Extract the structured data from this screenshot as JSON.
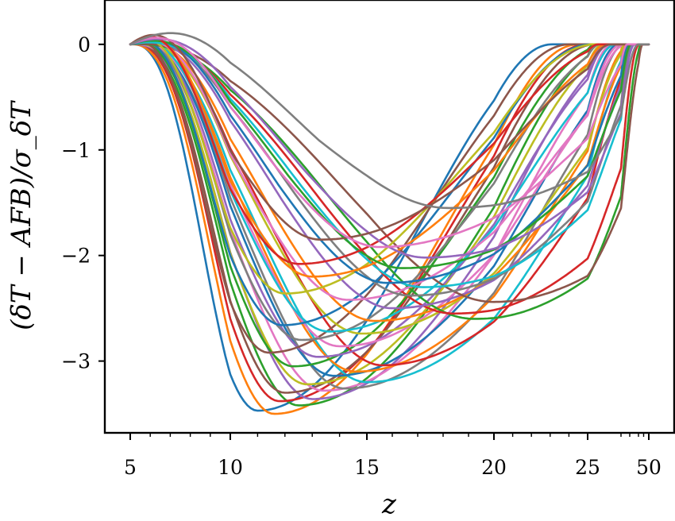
{
  "chart_data": {
    "type": "line",
    "title": "",
    "xlabel": "z",
    "ylabel": "(δT − AFB)/σ_δT",
    "x_scale": "nonlinear (compressed at high z)",
    "x_ticks": [
      5,
      10,
      15,
      20,
      25,
      50
    ],
    "x_tick_labels": [
      "5",
      "10",
      "15",
      "20",
      "25",
      "50"
    ],
    "x_minor_ticks": [
      6,
      7,
      8,
      9,
      11,
      12,
      13,
      14,
      16,
      17,
      18,
      19,
      21,
      22,
      23,
      24,
      30,
      35,
      40,
      45
    ],
    "y_ticks": [
      0,
      -1,
      -2,
      -3
    ],
    "y_tick_labels": [
      "0",
      "−1",
      "−2",
      "−3"
    ],
    "xlim": [
      4.2,
      50.5
    ],
    "ylim": [
      -3.68,
      0.42
    ],
    "grid": false,
    "legend": "none",
    "palette": [
      "#1f77b4",
      "#ff7f0e",
      "#2ca02c",
      "#d62728",
      "#9467bd",
      "#8c564b",
      "#e377c2",
      "#7f7f7f",
      "#bcbd22",
      "#17becf"
    ],
    "series_shape": "each curve starts at 0 at z=5, rises slightly above 0, dips to a single minimum, then returns to 0 by z=50",
    "series": [
      {
        "min_z": 11.0,
        "min_y": -3.47,
        "pos_bump": 0.02
      },
      {
        "min_z": 11.6,
        "min_y": -3.5,
        "pos_bump": 0.01
      },
      {
        "min_z": 12.5,
        "min_y": -3.42,
        "pos_bump": 0.03
      },
      {
        "min_z": 11.8,
        "min_y": -3.38,
        "pos_bump": 0.04
      },
      {
        "min_z": 13.0,
        "min_y": -3.36,
        "pos_bump": 0.02
      },
      {
        "min_z": 12.0,
        "min_y": -3.3,
        "pos_bump": 0.05
      },
      {
        "min_z": 13.4,
        "min_y": -3.28,
        "pos_bump": 0.03
      },
      {
        "min_z": 14.2,
        "min_y": -3.26,
        "pos_bump": 0.04
      },
      {
        "min_z": 12.8,
        "min_y": -3.22,
        "pos_bump": 0.06
      },
      {
        "min_z": 15.0,
        "min_y": -3.2,
        "pos_bump": 0.05
      },
      {
        "min_z": 13.8,
        "min_y": -3.14,
        "pos_bump": 0.07
      },
      {
        "min_z": 14.6,
        "min_y": -3.1,
        "pos_bump": 0.05
      },
      {
        "min_z": 12.3,
        "min_y": -3.05,
        "pos_bump": 0.08
      },
      {
        "min_z": 15.6,
        "min_y": -3.04,
        "pos_bump": 0.06
      },
      {
        "min_z": 13.2,
        "min_y": -2.96,
        "pos_bump": 0.09
      },
      {
        "min_z": 11.4,
        "min_y": -2.92,
        "pos_bump": 0.1
      },
      {
        "min_z": 14.0,
        "min_y": -2.86,
        "pos_bump": 0.07
      },
      {
        "min_z": 12.6,
        "min_y": -2.8,
        "pos_bump": 0.1
      },
      {
        "min_z": 14.8,
        "min_y": -2.74,
        "pos_bump": 0.08
      },
      {
        "min_z": 13.6,
        "min_y": -2.72,
        "pos_bump": 0.11
      },
      {
        "min_z": 11.9,
        "min_y": -2.66,
        "pos_bump": 0.12
      },
      {
        "min_z": 15.3,
        "min_y": -2.62,
        "pos_bump": 0.09
      },
      {
        "min_z": 19.2,
        "min_y": -2.6,
        "pos_bump": 0.02
      },
      {
        "min_z": 18.4,
        "min_y": -2.55,
        "pos_bump": 0.04
      },
      {
        "min_z": 16.0,
        "min_y": -2.5,
        "pos_bump": 0.1
      },
      {
        "min_z": 20.0,
        "min_y": -2.44,
        "pos_bump": 0.03
      },
      {
        "min_z": 14.3,
        "min_y": -2.42,
        "pos_bump": 0.12
      },
      {
        "min_z": 16.7,
        "min_y": -2.38,
        "pos_bump": 0.09
      },
      {
        "min_z": 12.0,
        "min_y": -2.36,
        "pos_bump": 0.16
      },
      {
        "min_z": 17.2,
        "min_y": -2.3,
        "pos_bump": 0.08
      },
      {
        "min_z": 15.8,
        "min_y": -2.26,
        "pos_bump": 0.13
      },
      {
        "min_z": 13.0,
        "min_y": -2.2,
        "pos_bump": 0.18
      },
      {
        "min_z": 16.4,
        "min_y": -2.12,
        "pos_bump": 0.12
      },
      {
        "min_z": 12.5,
        "min_y": -2.08,
        "pos_bump": 0.2
      },
      {
        "min_z": 17.3,
        "min_y": -2.02,
        "pos_bump": 0.15
      },
      {
        "min_z": 13.3,
        "min_y": -1.85,
        "pos_bump": 0.22
      },
      {
        "min_z": 15.5,
        "min_y": -1.92,
        "pos_bump": 0.17
      },
      {
        "min_z": 18.2,
        "min_y": -1.55,
        "pos_bump": 0.24
      }
    ]
  }
}
